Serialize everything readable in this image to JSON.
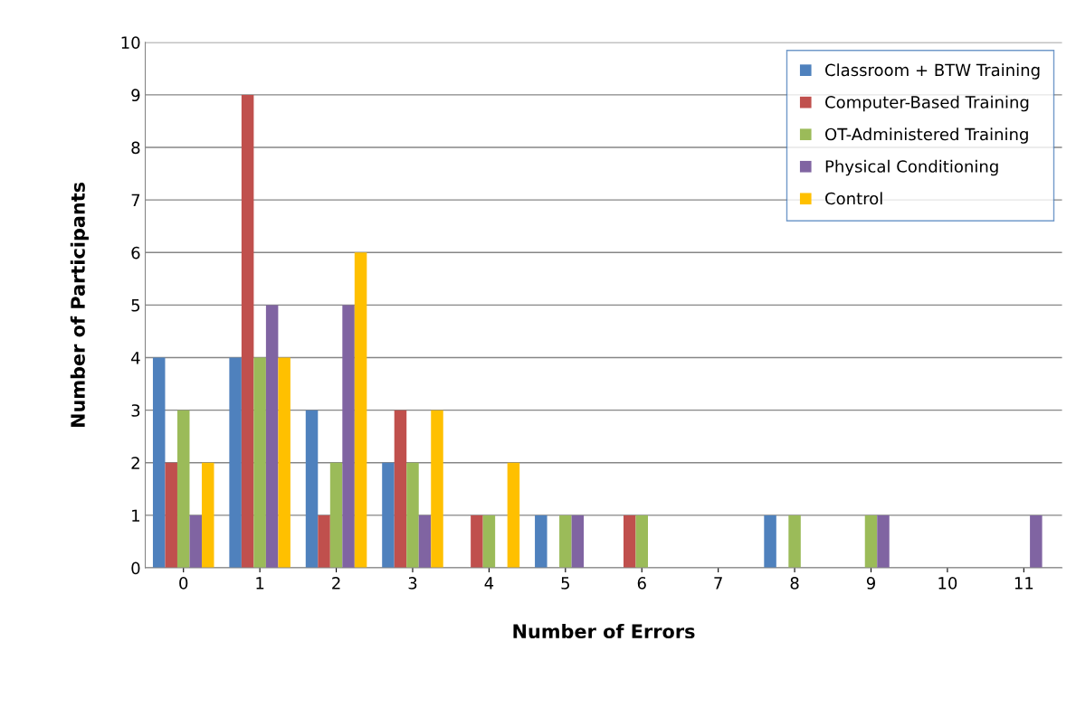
{
  "chart_data": {
    "type": "bar",
    "xlabel": "Number of Errors",
    "ylabel": "Number of Participants",
    "categories": [
      "0",
      "1",
      "2",
      "3",
      "4",
      "5",
      "6",
      "7",
      "8",
      "9",
      "10",
      "11"
    ],
    "series": [
      {
        "name": "Classroom + BTW Training",
        "color": "#4f81bd",
        "values": [
          4,
          4,
          3,
          2,
          0,
          1,
          0,
          0,
          1,
          0,
          0,
          0
        ]
      },
      {
        "name": "Computer-Based Training",
        "color": "#c0504d",
        "values": [
          2,
          9,
          1,
          3,
          1,
          0,
          1,
          0,
          0,
          0,
          0,
          0
        ]
      },
      {
        "name": "OT-Administered Training",
        "color": "#9bbb59",
        "values": [
          3,
          4,
          2,
          2,
          1,
          1,
          1,
          0,
          1,
          1,
          0,
          0
        ]
      },
      {
        "name": "Physical Conditioning",
        "color": "#8064a2",
        "values": [
          1,
          5,
          5,
          1,
          0,
          1,
          0,
          0,
          0,
          1,
          0,
          1
        ]
      },
      {
        "name": "Control",
        "color": "#ffc000",
        "values": [
          2,
          4,
          6,
          3,
          2,
          0,
          0,
          0,
          0,
          0,
          0,
          0
        ]
      }
    ],
    "ylim": [
      0,
      10
    ],
    "yticks": [
      0,
      1,
      2,
      3,
      4,
      5,
      6,
      7,
      8,
      9,
      10
    ],
    "grid": "y",
    "legend": "top right"
  }
}
